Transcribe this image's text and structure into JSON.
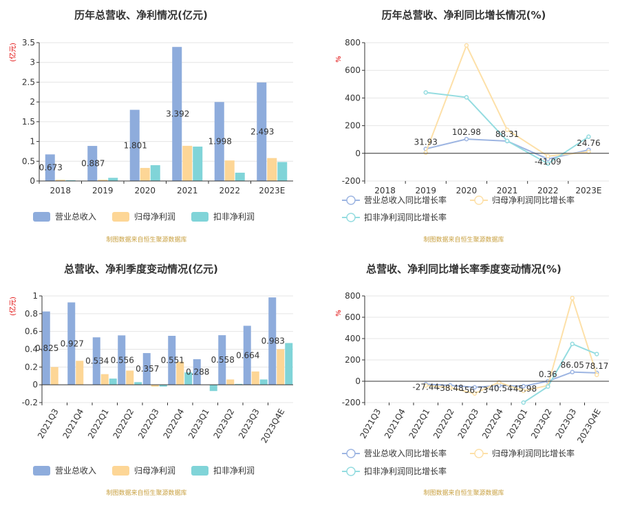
{
  "colors": {
    "revenue": "#8eacdc",
    "net_profit": "#fdd696",
    "deducted_profit": "#80d4d8",
    "revenue_line": "#9db5e2",
    "net_line": "#fde0a8",
    "deducted_line": "#94dce0",
    "axis": "#333333",
    "grid": "#e4e4e4",
    "source": "#c8a040",
    "unit": "#e00000"
  },
  "chart_data": [
    {
      "id": "annual-bar",
      "type": "bar",
      "title": "历年总营收、净利情况(亿元)",
      "unit": "(亿元)",
      "categories": [
        "2018",
        "2019",
        "2020",
        "2021",
        "2022",
        "2023E"
      ],
      "ylim": [
        0,
        3.5
      ],
      "yticks": [
        "0",
        "0.5",
        "1",
        "1.5",
        "2",
        "2.5",
        "3",
        "3.5"
      ],
      "series": [
        {
          "name": "营业总收入",
          "values": [
            0.673,
            0.887,
            1.801,
            3.392,
            1.998,
            2.493
          ],
          "labels": [
            "0.673",
            "0.887",
            "1.801",
            "3.392",
            "1.998",
            "2.493"
          ]
        },
        {
          "name": "归母净利润",
          "values": [
            0.03,
            0.03,
            0.33,
            0.89,
            0.52,
            0.58
          ]
        },
        {
          "name": "扣非净利润",
          "values": [
            0.02,
            0.08,
            0.4,
            0.87,
            0.21,
            0.48
          ]
        }
      ],
      "source": "制图数据来自恒生聚源数据库",
      "grid": true,
      "legend_position": "bottom"
    },
    {
      "id": "annual-line",
      "type": "line",
      "title": "历年总营收、净利同比增长情况(%)",
      "unit": "%",
      "categories": [
        "2018",
        "2019",
        "2020",
        "2021",
        "2022",
        "2023E"
      ],
      "ylim": [
        -200,
        800
      ],
      "yticks": [
        "-200",
        "0",
        "200",
        "400",
        "600",
        "800"
      ],
      "series": [
        {
          "name": "营业总收入同比增长率",
          "values": [
            null,
            31.93,
            102.98,
            88.31,
            -41.09,
            24.76
          ],
          "labels": [
            "",
            "31.93",
            "102.98",
            "88.31",
            "-41.09",
            "24.76"
          ]
        },
        {
          "name": "归母净利润同比增长率",
          "values": [
            null,
            5,
            780,
            170,
            -20,
            10
          ]
        },
        {
          "name": "扣非净利润同比增长率",
          "values": [
            null,
            440,
            405,
            90,
            -75,
            120
          ]
        }
      ],
      "source": "制图数据来自恒生聚源数据库",
      "grid": true,
      "legend_position": "bottom"
    },
    {
      "id": "quarter-bar",
      "type": "bar",
      "title": "总营收、净利季度变动情况(亿元)",
      "unit": "(亿元)",
      "categories": [
        "2021Q3",
        "2021Q4",
        "2022Q1",
        "2022Q2",
        "2022Q3",
        "2022Q4",
        "2023Q1",
        "2023Q2",
        "2023Q3",
        "2023Q4E"
      ],
      "ylim": [
        -0.2,
        1
      ],
      "yticks": [
        "-0.2",
        "0",
        "0.2",
        "0.4",
        "0.6",
        "0.8",
        "1"
      ],
      "series": [
        {
          "name": "营业总收入",
          "values": [
            0.825,
            0.927,
            0.534,
            0.556,
            0.357,
            0.551,
            0.288,
            0.558,
            0.664,
            0.983
          ],
          "labels": [
            "0.825",
            "0.927",
            "0.534",
            "0.556",
            "0.357",
            "0.551",
            "0.288",
            "0.558",
            "0.664",
            "0.983"
          ]
        },
        {
          "name": "归母净利润",
          "values": [
            0.2,
            0.27,
            0.12,
            0.16,
            -0.02,
            0.26,
            0.0,
            0.06,
            0.15,
            0.4
          ]
        },
        {
          "name": "扣非净利润",
          "values": [
            0.0,
            0.0,
            0.07,
            0.03,
            -0.02,
            0.14,
            -0.07,
            0.01,
            0.06,
            0.47
          ]
        }
      ],
      "source": "制图数据来自恒生聚源数据库",
      "grid": true,
      "legend_position": "bottom"
    },
    {
      "id": "quarter-line",
      "type": "line",
      "title": "总营收、净利同比增长率季度变动情况(%)",
      "unit": "%",
      "categories": [
        "2021Q3",
        "2021Q4",
        "2022Q1",
        "2022Q2",
        "2022Q3",
        "2022Q4",
        "2023Q1",
        "2023Q2",
        "2023Q3",
        "2023Q4E"
      ],
      "ylim": [
        -200,
        800
      ],
      "yticks": [
        "-200",
        "0",
        "200",
        "400",
        "600",
        "800"
      ],
      "series": [
        {
          "name": "营业总收入同比增长率",
          "values": [
            null,
            null,
            -27.44,
            -38.48,
            -56.73,
            -40.54,
            -45.98,
            0.36,
            86.05,
            78.17
          ],
          "labels": [
            "",
            "",
            "-27.44",
            "-38.48",
            "-56.73",
            "-40.54",
            "-45.98",
            "0.36",
            "86.05",
            "78.17"
          ]
        },
        {
          "name": "归母净利润同比增长率",
          "values": [
            null,
            null,
            -40,
            -60,
            -115,
            -10,
            -90,
            -40,
            780,
            60
          ]
        },
        {
          "name": "扣非净利润同比增长率",
          "values": [
            null,
            null,
            null,
            null,
            null,
            null,
            -200,
            -50,
            350,
            255
          ]
        }
      ],
      "source": "制图数据来自恒生聚源数据库",
      "grid": true,
      "legend_position": "bottom"
    }
  ]
}
